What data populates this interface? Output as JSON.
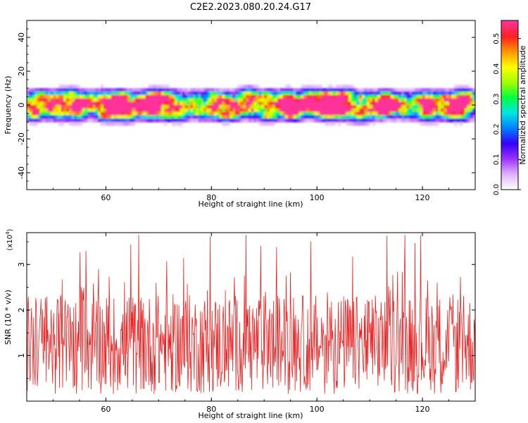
{
  "title": "C2E2.2023.080.20.24.G17",
  "chart_data": [
    {
      "type": "heatmap",
      "xlabel": "Height of straight line (km)",
      "ylabel": "Frequency (Hz)",
      "xlim": [
        45,
        130
      ],
      "ylim": [
        -50,
        50
      ],
      "xticks": [
        60,
        80,
        100,
        120
      ],
      "yticks": [
        -40,
        -20,
        0,
        20,
        40
      ],
      "xtick_labels": [
        "60",
        "80",
        "100",
        "120"
      ],
      "ytick_labels": [
        "-40",
        "-20",
        "0",
        "20",
        "40"
      ],
      "band_center_hz": 0,
      "band_half_width_hz": 8,
      "colorbar": {
        "label": "Normalized spectral amplitude",
        "range": [
          0.0,
          0.56
        ],
        "ticks": [
          0.0,
          0.1,
          0.2,
          0.3,
          0.4,
          0.5
        ],
        "tick_labels": [
          "0.0",
          "0.1",
          "0.2",
          "0.3",
          "0.4",
          "0.5"
        ],
        "colors": [
          "#ffffff",
          "#e0b0ff",
          "#9a33ff",
          "#3300ff",
          "#0080ff",
          "#00e5e5",
          "#00ff40",
          "#a0ff00",
          "#ffff00",
          "#ff9900",
          "#ff2020",
          "#ff3399"
        ]
      }
    },
    {
      "type": "line",
      "xlabel": "Height of straight line (km)",
      "ylabel": "SNR (10 * v/v)",
      "y_multiplier": "(x10",
      "y_multiplier_exp": "4",
      "y_multiplier_close": ")",
      "xlim": [
        45,
        130
      ],
      "ylim": [
        0,
        3.7
      ],
      "xticks": [
        60,
        80,
        100,
        120
      ],
      "yticks": [
        1,
        2,
        3
      ],
      "xtick_labels": [
        "60",
        "80",
        "100",
        "120"
      ],
      "ytick_labels": [
        "1",
        "2",
        "3"
      ],
      "series": [
        {
          "color": "#ee2222",
          "mean": 1.25,
          "peak": 3.65,
          "min": 0.02,
          "samples": 850
        }
      ]
    }
  ]
}
